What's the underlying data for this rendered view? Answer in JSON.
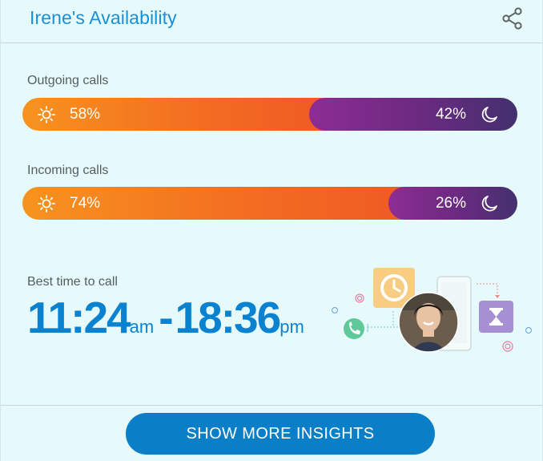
{
  "header": {
    "title": "Irene's Availability",
    "share_icon": "share-icon"
  },
  "outgoing": {
    "label": "Outgoing calls",
    "day_percent": "58%",
    "night_percent": "42%",
    "day_fraction": 0.58
  },
  "incoming": {
    "label": "Incoming calls",
    "day_percent": "74%",
    "night_percent": "26%",
    "day_fraction": 0.74
  },
  "best_time": {
    "label": "Best time to call",
    "start": "11:24",
    "start_suffix": "am",
    "separator": "-",
    "end": "18:36",
    "end_suffix": "pm"
  },
  "footer": {
    "button_label": "SHOW MORE INSIGHTS"
  },
  "colors": {
    "accent": "#1b8fd4",
    "day_start": "#f7931e",
    "day_end": "#ef5a24",
    "night_start": "#8d2c93",
    "night_end": "#43306e",
    "button": "#0a7fc7"
  }
}
